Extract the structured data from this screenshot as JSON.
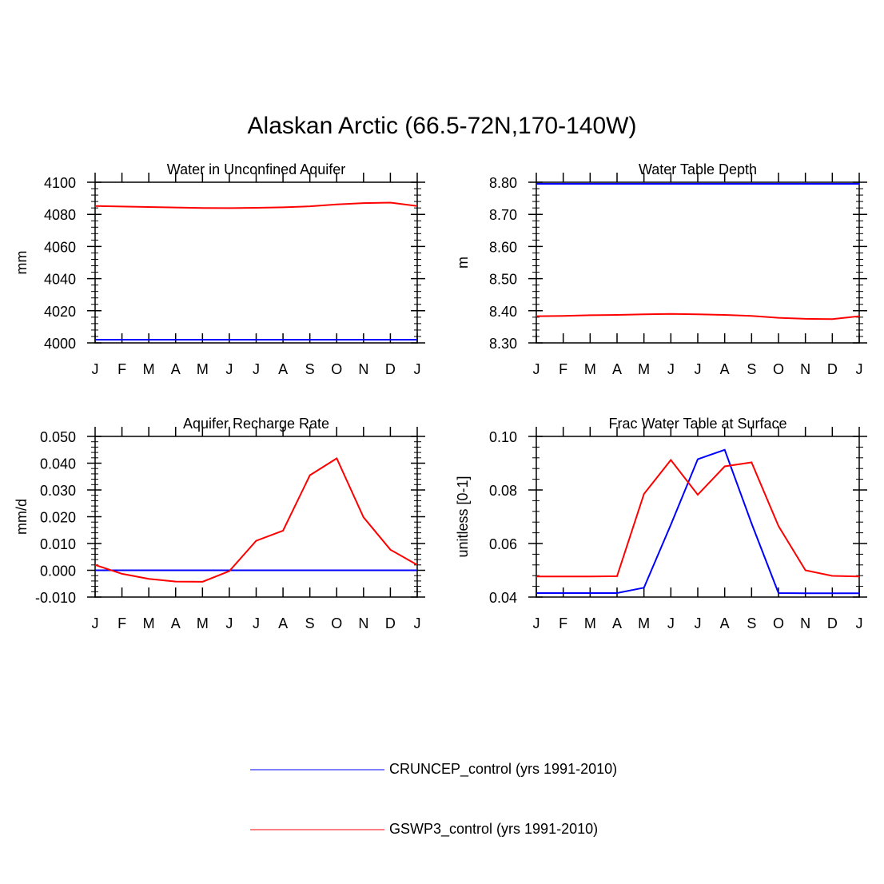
{
  "title": "Alaskan Arctic (66.5-72N,170-140W)",
  "legend": [
    {
      "label": "CRUNCEP_control (yrs 1991-2010)",
      "color": "#0000ff"
    },
    {
      "label": "GSWP3_control (yrs 1991-2010)",
      "color": "#ff0000"
    }
  ],
  "chart_data": [
    {
      "type": "line",
      "title": "Water in Unconfined Aquifer",
      "xlabel": "",
      "ylabel": "mm",
      "categories": [
        "J",
        "F",
        "M",
        "A",
        "M",
        "J",
        "J",
        "A",
        "S",
        "O",
        "N",
        "D",
        "J"
      ],
      "ylim": [
        4000,
        4100
      ],
      "yticks": [
        4000,
        4020,
        4040,
        4060,
        4080,
        4100
      ],
      "ytick_labels": [
        "4000",
        "4020",
        "4040",
        "4060",
        "4080",
        "4100"
      ],
      "series": [
        {
          "name": "CRUNCEP_control (yrs 1991-2010)",
          "color": "#0000ff",
          "values": [
            4002,
            4002,
            4002,
            4002,
            4002,
            4002,
            4002,
            4002,
            4002,
            4002,
            4002,
            4002,
            4002
          ]
        },
        {
          "name": "GSWP3_control (yrs 1991-2010)",
          "color": "#ff0000",
          "values": [
            4085.2,
            4084.9,
            4084.6,
            4084.3,
            4084.0,
            4083.9,
            4084.1,
            4084.4,
            4085.0,
            4086.2,
            4087.0,
            4087.3,
            4085.2
          ]
        }
      ]
    },
    {
      "type": "line",
      "title": "Water Table Depth",
      "xlabel": "",
      "ylabel": "m",
      "categories": [
        "J",
        "F",
        "M",
        "A",
        "M",
        "J",
        "J",
        "A",
        "S",
        "O",
        "N",
        "D",
        "J"
      ],
      "ylim": [
        8.3,
        8.8
      ],
      "yticks": [
        8.3,
        8.4,
        8.5,
        8.6,
        8.7,
        8.8
      ],
      "ytick_labels": [
        "8.30",
        "8.40",
        "8.50",
        "8.60",
        "8.70",
        "8.80"
      ],
      "series": [
        {
          "name": "CRUNCEP_control (yrs 1991-2010)",
          "color": "#0000ff",
          "values": [
            8.795,
            8.795,
            8.795,
            8.795,
            8.795,
            8.795,
            8.795,
            8.795,
            8.795,
            8.795,
            8.795,
            8.795,
            8.795
          ]
        },
        {
          "name": "GSWP3_control (yrs 1991-2010)",
          "color": "#ff0000",
          "values": [
            8.383,
            8.384,
            8.386,
            8.387,
            8.389,
            8.39,
            8.389,
            8.387,
            8.384,
            8.378,
            8.375,
            8.374,
            8.383
          ]
        }
      ]
    },
    {
      "type": "line",
      "title": "Aquifer Recharge Rate",
      "xlabel": "",
      "ylabel": "mm/d",
      "categories": [
        "J",
        "F",
        "M",
        "A",
        "M",
        "J",
        "J",
        "A",
        "S",
        "O",
        "N",
        "D",
        "J"
      ],
      "ylim": [
        -0.01,
        0.05
      ],
      "yticks": [
        -0.01,
        0.0,
        0.01,
        0.02,
        0.03,
        0.04,
        0.05
      ],
      "ytick_labels": [
        "-0.010",
        "0.000",
        "0.010",
        "0.020",
        "0.030",
        "0.040",
        "0.050"
      ],
      "series": [
        {
          "name": "CRUNCEP_control (yrs 1991-2010)",
          "color": "#0000ff",
          "values": [
            0,
            0,
            0,
            0,
            0,
            0,
            0,
            0,
            0,
            0,
            0,
            0,
            0
          ]
        },
        {
          "name": "GSWP3_control (yrs 1991-2010)",
          "color": "#ff0000",
          "values": [
            0.002,
            -0.0013,
            -0.0032,
            -0.0042,
            -0.0043,
            -0.0003,
            0.011,
            0.0148,
            0.0355,
            0.0418,
            0.0198,
            0.0077,
            0.002
          ]
        }
      ]
    },
    {
      "type": "line",
      "title": "Frac Water Table at Surface",
      "xlabel": "",
      "ylabel": "unitless [0-1]",
      "categories": [
        "J",
        "F",
        "M",
        "A",
        "M",
        "J",
        "J",
        "A",
        "S",
        "O",
        "N",
        "D",
        "J"
      ],
      "ylim": [
        0.04,
        0.1
      ],
      "yticks": [
        0.04,
        0.06,
        0.08,
        0.1
      ],
      "ytick_labels": [
        "0.04",
        "0.06",
        "0.08",
        "0.10"
      ],
      "series": [
        {
          "name": "CRUNCEP_control (yrs 1991-2010)",
          "color": "#0000ff",
          "values": [
            0.0415,
            0.0415,
            0.0415,
            0.0415,
            0.0435,
            0.067,
            0.0915,
            0.095,
            0.0675,
            0.0415,
            0.0414,
            0.0414,
            0.0414
          ]
        },
        {
          "name": "GSWP3_control (yrs 1991-2010)",
          "color": "#ff0000",
          "values": [
            0.0477,
            0.0477,
            0.0477,
            0.0478,
            0.0785,
            0.0912,
            0.0782,
            0.0888,
            0.0903,
            0.0665,
            0.05,
            0.0479,
            0.0477
          ]
        }
      ]
    }
  ]
}
